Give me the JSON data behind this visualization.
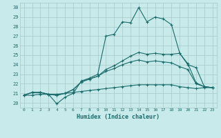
{
  "xlabel": "Humidex (Indice chaleur)",
  "background_color": "#c8eaea",
  "grid_color": "#a8c8c8",
  "line_color": "#1a6b6b",
  "xlim": [
    -0.5,
    23.5
  ],
  "ylim": [
    19.5,
    30.5
  ],
  "xticks": [
    0,
    1,
    2,
    3,
    4,
    5,
    6,
    7,
    8,
    9,
    10,
    11,
    12,
    13,
    14,
    15,
    16,
    17,
    18,
    19,
    20,
    21,
    22,
    23
  ],
  "yticks": [
    20,
    21,
    22,
    23,
    24,
    25,
    26,
    27,
    28,
    29,
    30
  ],
  "series1": [
    20.8,
    21.1,
    21.1,
    20.9,
    19.9,
    20.6,
    21.0,
    22.3,
    22.6,
    23.0,
    27.0,
    27.2,
    28.5,
    28.4,
    30.0,
    28.5,
    29.0,
    28.8,
    28.2,
    25.2,
    24.0,
    23.7,
    21.7,
    21.6
  ],
  "series2": [
    20.8,
    21.1,
    21.1,
    20.9,
    20.8,
    21.0,
    21.4,
    22.2,
    22.5,
    22.8,
    23.5,
    23.9,
    24.4,
    24.9,
    25.3,
    25.1,
    25.2,
    25.1,
    25.1,
    25.2,
    24.1,
    22.1,
    21.7,
    21.6
  ],
  "series3": [
    20.8,
    21.1,
    21.1,
    20.9,
    20.8,
    21.0,
    21.4,
    22.2,
    22.5,
    22.8,
    23.3,
    23.6,
    24.0,
    24.3,
    24.5,
    24.3,
    24.4,
    24.3,
    24.2,
    23.8,
    23.5,
    22.0,
    21.7,
    21.6
  ],
  "series4": [
    20.8,
    20.8,
    20.9,
    20.9,
    20.9,
    21.0,
    21.1,
    21.2,
    21.3,
    21.4,
    21.5,
    21.6,
    21.7,
    21.8,
    21.9,
    21.9,
    21.9,
    21.9,
    21.9,
    21.7,
    21.6,
    21.5,
    21.6,
    21.6
  ]
}
